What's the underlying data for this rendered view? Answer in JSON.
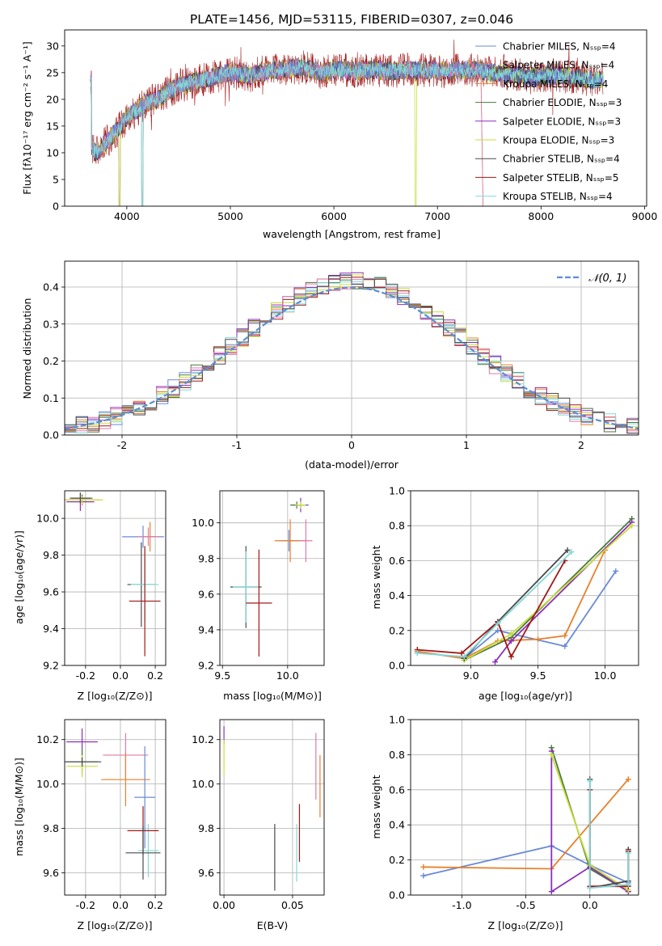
{
  "colors": {
    "series": [
      "#6a8ad8",
      "#e8802a",
      "#4a7a3e",
      "#8b2fb8",
      "#c8de3a",
      "#4a4a4a",
      "#a11818",
      "#e07aa8",
      "#82d8d8"
    ],
    "grid": "#b0b0b0",
    "normal": "#5b8ed6"
  },
  "chart_data": [
    {
      "id": "spectrum",
      "type": "line",
      "title": "PLATE=1456, MJD=53115, FIBERID=0307, z=0.046",
      "xlabel": "wavelength [Angstrom, rest frame]",
      "ylabel": "Flux [fλ10⁻¹⁷ erg cm⁻² s⁻¹ A⁻¹]",
      "xlim": [
        3400,
        9020
      ],
      "ylim": [
        0,
        33
      ],
      "xticks": [
        4000,
        5000,
        6000,
        7000,
        8000,
        9000
      ],
      "yticks": [
        0,
        5,
        10,
        15,
        20,
        25,
        30
      ],
      "legend_position": "upper right",
      "legend": [
        {
          "label": "Chabrier MILES, Nₛₛₚ=4",
          "color": "#6a8ad8"
        },
        {
          "label": "Salpeter MILES, Nₛₛₚ=4",
          "color": "#6a8ad8"
        },
        {
          "label": "Kroupa MILES, Nₛₛₚ=4",
          "color": "#e8802a"
        },
        {
          "label": "Chabrier ELODIE, Nₛₛₚ=3",
          "color": "#4a7a3e"
        },
        {
          "label": "Salpeter ELODIE, Nₛₛₚ=3",
          "color": "#8b2fb8"
        },
        {
          "label": "Kroupa ELODIE, Nₛₛₚ=3",
          "color": "#c8de3a"
        },
        {
          "label": "Chabrier STELIB, Nₛₛₚ=4",
          "color": "#4a4a4a"
        },
        {
          "label": "Salpeter STELIB, Nₛₛₚ=5",
          "color": "#a11818"
        },
        {
          "label": "Kroupa STELIB, Nₛₛₚ=4",
          "color": "#82d8d8"
        }
      ],
      "continuum": [
        [
          3660,
          11
        ],
        [
          3700,
          10
        ],
        [
          3800,
          12
        ],
        [
          3900,
          14
        ],
        [
          4000,
          16.5
        ],
        [
          4100,
          18
        ],
        [
          4200,
          19.5
        ],
        [
          4300,
          20
        ],
        [
          4400,
          21.5
        ],
        [
          4500,
          22.5
        ],
        [
          4600,
          23
        ],
        [
          4700,
          23.5
        ],
        [
          4800,
          24
        ],
        [
          4900,
          24.5
        ],
        [
          5000,
          25
        ],
        [
          5100,
          24.8
        ],
        [
          5200,
          24.5
        ],
        [
          5300,
          25
        ],
        [
          5400,
          25.5
        ],
        [
          5500,
          25.5
        ],
        [
          5600,
          25.8
        ],
        [
          5700,
          26
        ],
        [
          5800,
          25.5
        ],
        [
          5900,
          25
        ],
        [
          6000,
          25.5
        ],
        [
          6100,
          25.5
        ],
        [
          6200,
          25.3
        ],
        [
          6300,
          25.5
        ],
        [
          6400,
          25.5
        ],
        [
          6500,
          25.3
        ],
        [
          6600,
          25.3
        ],
        [
          6700,
          25.5
        ],
        [
          6800,
          25.4
        ],
        [
          6900,
          25.5
        ],
        [
          7000,
          25.3
        ],
        [
          7100,
          25.2
        ],
        [
          7200,
          25.5
        ],
        [
          7300,
          25.5
        ],
        [
          7400,
          25.5
        ],
        [
          7500,
          25
        ],
        [
          7600,
          25
        ],
        [
          7700,
          24.5
        ],
        [
          7800,
          24.5
        ],
        [
          7900,
          24
        ],
        [
          8000,
          24.5
        ],
        [
          8100,
          24.5
        ],
        [
          8200,
          24.5
        ],
        [
          8300,
          24
        ],
        [
          8400,
          24
        ],
        [
          8500,
          23.5
        ],
        [
          8600,
          24
        ]
      ]
    },
    {
      "id": "residuals",
      "type": "histogram",
      "xlabel": "(data-model)/error",
      "ylabel": "Normed distribution",
      "xlim": [
        -2.5,
        2.5
      ],
      "ylim": [
        0,
        0.47
      ],
      "xticks": [
        -2,
        -1,
        0,
        1,
        2
      ],
      "yticks": [
        0.0,
        0.1,
        0.2,
        0.3,
        0.4
      ],
      "legend": [
        {
          "label": "𝒩(0, 1)"
        }
      ],
      "legend_position": "upper right",
      "bin_width": 0.1,
      "histograms": 9
    },
    {
      "id": "age-vs-Z",
      "type": "scatter",
      "xlabel": "Z [log₁₀(Z/Z⊙)]",
      "ylabel": "age  [log₁₀(age/yr)]",
      "xlim": [
        -0.32,
        0.26
      ],
      "ylim": [
        9.2,
        10.15
      ],
      "xticks": [
        -0.2,
        0.0,
        0.2
      ],
      "yticks": [
        9.2,
        9.4,
        9.6,
        9.8,
        10.0
      ],
      "points": [
        {
          "x": -0.22,
          "y": 10.1,
          "xerr": 0.1,
          "yerr": 0.03,
          "c": 1
        },
        {
          "x": -0.22,
          "y": 10.11,
          "xerr": 0.06,
          "yerr": 0.02,
          "c": 2
        },
        {
          "x": -0.23,
          "y": 10.09,
          "xerr": 0.08,
          "yerr": 0.05,
          "c": 3
        },
        {
          "x": -0.22,
          "y": 10.1,
          "xerr": 0.12,
          "yerr": 0.02,
          "c": 4
        },
        {
          "x": -0.23,
          "y": 10.11,
          "xerr": 0.06,
          "yerr": 0.03,
          "c": 5
        },
        {
          "x": 0.13,
          "y": 9.9,
          "xerr": 0.12,
          "yerr": 0.06,
          "c": 0
        },
        {
          "x": 0.17,
          "y": 9.9,
          "xerr": 0.03,
          "yerr": 0.08,
          "c": 1
        },
        {
          "x": 0.16,
          "y": 9.9,
          "xerr": 0.06,
          "yerr": 0.05,
          "c": 7
        },
        {
          "x": 0.12,
          "y": 9.64,
          "xerr": 0.08,
          "yerr": 0.23,
          "c": 5
        },
        {
          "x": 0.14,
          "y": 9.64,
          "xerr": 0.08,
          "yerr": 0.2,
          "c": 8
        },
        {
          "x": 0.14,
          "y": 9.55,
          "xerr": 0.09,
          "yerr": 0.3,
          "c": 6
        }
      ]
    },
    {
      "id": "age-vs-mass",
      "type": "scatter",
      "xlabel": "mass [log₁₀(M/M⊙)]",
      "ylabel": "",
      "xlim": [
        9.48,
        10.28
      ],
      "ylim": [
        9.2,
        10.18
      ],
      "xticks": [
        9.5,
        10.0
      ],
      "yticks": [
        9.2,
        9.4,
        9.6,
        9.8,
        10.0
      ],
      "points": [
        {
          "x": 10.1,
          "y": 10.1,
          "xerr": 0.06,
          "yerr": 0.04,
          "c": 3
        },
        {
          "x": 10.07,
          "y": 10.1,
          "xerr": 0.05,
          "yerr": 0.02,
          "c": 2
        },
        {
          "x": 10.1,
          "y": 10.1,
          "xerr": 0.04,
          "yerr": 0.02,
          "c": 4
        },
        {
          "x": 10.01,
          "y": 9.9,
          "xerr": 0.08,
          "yerr": 0.06,
          "c": 0
        },
        {
          "x": 10.02,
          "y": 9.9,
          "xerr": 0.12,
          "yerr": 0.12,
          "c": 1
        },
        {
          "x": 10.14,
          "y": 9.9,
          "xerr": 0.05,
          "yerr": 0.12,
          "c": 7
        },
        {
          "x": 9.68,
          "y": 9.64,
          "xerr": 0.12,
          "yerr": 0.23,
          "c": 5
        },
        {
          "x": 9.68,
          "y": 9.64,
          "xerr": 0.1,
          "yerr": 0.2,
          "c": 8
        },
        {
          "x": 9.78,
          "y": 9.55,
          "xerr": 0.1,
          "yerr": 0.3,
          "c": 6
        }
      ]
    },
    {
      "id": "massweight-vs-age",
      "type": "line",
      "xlabel": "age  [log₁₀(age/yr)]",
      "ylabel": "mass weight",
      "xlim": [
        8.55,
        10.25
      ],
      "ylim": [
        0,
        1.0
      ],
      "xticks": [
        9.0,
        9.5,
        10.0
      ],
      "yticks": [
        0.0,
        0.2,
        0.4,
        0.6,
        0.8,
        1.0
      ],
      "series": [
        {
          "c": 0,
          "x": [
            8.6,
            8.95,
            9.2,
            9.7,
            10.08
          ],
          "y": [
            0.08,
            0.04,
            0.2,
            0.11,
            0.54
          ]
        },
        {
          "c": 1,
          "x": [
            8.6,
            8.95,
            9.2,
            9.5,
            9.7,
            10.0
          ],
          "y": [
            0.08,
            0.04,
            0.14,
            0.15,
            0.17,
            0.66
          ]
        },
        {
          "c": 2,
          "x": [
            8.95,
            9.3,
            10.2
          ],
          "y": [
            0.03,
            0.16,
            0.84
          ]
        },
        {
          "c": 3,
          "x": [
            9.18,
            9.3,
            10.2
          ],
          "y": [
            0.02,
            0.14,
            0.82
          ]
        },
        {
          "c": 4,
          "x": [
            8.95,
            9.3,
            10.2
          ],
          "y": [
            0.03,
            0.18,
            0.8
          ]
        },
        {
          "c": 5,
          "x": [
            8.95,
            9.2,
            9.72
          ],
          "y": [
            0.04,
            0.25,
            0.66
          ]
        },
        {
          "c": 6,
          "x": [
            8.6,
            8.93,
            9.2,
            9.3,
            9.7
          ],
          "y": [
            0.09,
            0.07,
            0.25,
            0.05,
            0.6
          ]
        },
        {
          "c": 8,
          "x": [
            8.6,
            8.95,
            9.2,
            9.75
          ],
          "y": [
            0.07,
            0.05,
            0.24,
            0.65
          ]
        }
      ]
    },
    {
      "id": "mass-vs-Z",
      "type": "scatter",
      "xlabel": "Z [log₁₀(Z/Z⊙)]",
      "ylabel": "mass [log₁₀(M/M⊙)]",
      "xlim": [
        -0.32,
        0.26
      ],
      "ylim": [
        9.5,
        10.29
      ],
      "xticks": [
        -0.2,
        0.0,
        0.2
      ],
      "yticks": [
        9.6,
        9.8,
        10.0,
        10.2
      ],
      "points": [
        {
          "x": -0.22,
          "y": 10.19,
          "xerr": 0.09,
          "yerr": 0.06,
          "c": 3
        },
        {
          "x": -0.22,
          "y": 10.1,
          "xerr": 0.09,
          "yerr": 0.06,
          "c": 2
        },
        {
          "x": -0.22,
          "y": 10.08,
          "xerr": 0.09,
          "yerr": 0.05,
          "c": 4
        },
        {
          "x": -0.22,
          "y": 10.1,
          "xerr": 0.11,
          "yerr": 0.02,
          "c": 5
        },
        {
          "x": 0.03,
          "y": 10.13,
          "xerr": 0.13,
          "yerr": 0.1,
          "c": 7
        },
        {
          "x": 0.03,
          "y": 10.02,
          "xerr": 0.14,
          "yerr": 0.12,
          "c": 1
        },
        {
          "x": 0.14,
          "y": 9.94,
          "xerr": 0.06,
          "yerr": 0.23,
          "c": 0
        },
        {
          "x": 0.16,
          "y": 9.7,
          "xerr": 0.06,
          "yerr": 0.12,
          "c": 8
        },
        {
          "x": 0.13,
          "y": 9.79,
          "xerr": 0.09,
          "yerr": 0.11,
          "c": 6
        },
        {
          "x": 0.13,
          "y": 9.69,
          "xerr": 0.1,
          "yerr": 0.12,
          "c": 5
        }
      ]
    },
    {
      "id": "mass-vs-ebv",
      "type": "scatter",
      "xlabel": "E(B-V)",
      "ylabel": "",
      "xlim": [
        -0.003,
        0.073
      ],
      "ylim": [
        9.5,
        10.29
      ],
      "xticks": [
        0.0,
        0.05
      ],
      "xticklabels": [
        "0.00",
        "0.05"
      ],
      "yticks": [
        9.6,
        9.8,
        10.0,
        10.2
      ],
      "points": [
        {
          "x": 0.0,
          "y": 10.22,
          "xerr": 0,
          "yerr": 0.04,
          "c": 3
        },
        {
          "x": 0.0,
          "y": 10.12,
          "xerr": 0,
          "yerr": 0.08,
          "c": 4
        },
        {
          "x": 0.067,
          "y": 10.08,
          "xerr": 0,
          "yerr": 0.15,
          "c": 7
        },
        {
          "x": 0.07,
          "y": 9.99,
          "xerr": 0,
          "yerr": 0.14,
          "c": 1
        },
        {
          "x": 0.037,
          "y": 9.67,
          "xerr": 0,
          "yerr": 0.15,
          "c": 5
        },
        {
          "x": 0.055,
          "y": 9.78,
          "xerr": 0,
          "yerr": 0.13,
          "c": 6
        },
        {
          "x": 0.053,
          "y": 9.69,
          "xerr": 0,
          "yerr": 0.13,
          "c": 8
        }
      ]
    },
    {
      "id": "massweight-vs-Z",
      "type": "line",
      "xlabel": "Z [log₁₀(Z/Z⊙)]",
      "ylabel": "mass weight",
      "xlim": [
        -1.4,
        0.38
      ],
      "ylim": [
        0,
        1.0
      ],
      "xticks": [
        -1.0,
        -0.5,
        0.0
      ],
      "yticks": [
        0.0,
        0.2,
        0.4,
        0.6,
        0.8,
        1.0
      ],
      "series": [
        {
          "c": 0,
          "x": [
            -1.3,
            -0.3,
            0.0,
            0.3
          ],
          "y": [
            0.11,
            0.28,
            0.17,
            0.07
          ]
        },
        {
          "c": 1,
          "x": [
            -1.3,
            -0.3,
            0.3
          ],
          "y": [
            0.16,
            0.15,
            0.66
          ]
        },
        {
          "c": 2,
          "x": [
            -0.3,
            0.0,
            0.3
          ],
          "y": [
            0.84,
            0.15,
            0.02
          ]
        },
        {
          "c": 3,
          "x": [
            -0.3,
            -0.3,
            0.0,
            0.3
          ],
          "y": [
            0.82,
            0.02,
            0.16,
            0.02
          ]
        },
        {
          "c": 4,
          "x": [
            -0.3,
            0.0,
            0.3
          ],
          "y": [
            0.8,
            0.17,
            0.03
          ]
        },
        {
          "c": 5,
          "x": [
            0.0,
            0.0,
            0.3,
            0.3
          ],
          "y": [
            0.66,
            0.04,
            0.08,
            0.26
          ]
        },
        {
          "c": 6,
          "x": [
            0.0,
            0.0,
            0.3,
            0.3
          ],
          "y": [
            0.6,
            0.05,
            0.05,
            0.25
          ]
        },
        {
          "c": 8,
          "x": [
            0.0,
            0.0,
            0.3,
            0.3
          ],
          "y": [
            0.65,
            0.04,
            0.06,
            0.24
          ]
        }
      ]
    }
  ]
}
